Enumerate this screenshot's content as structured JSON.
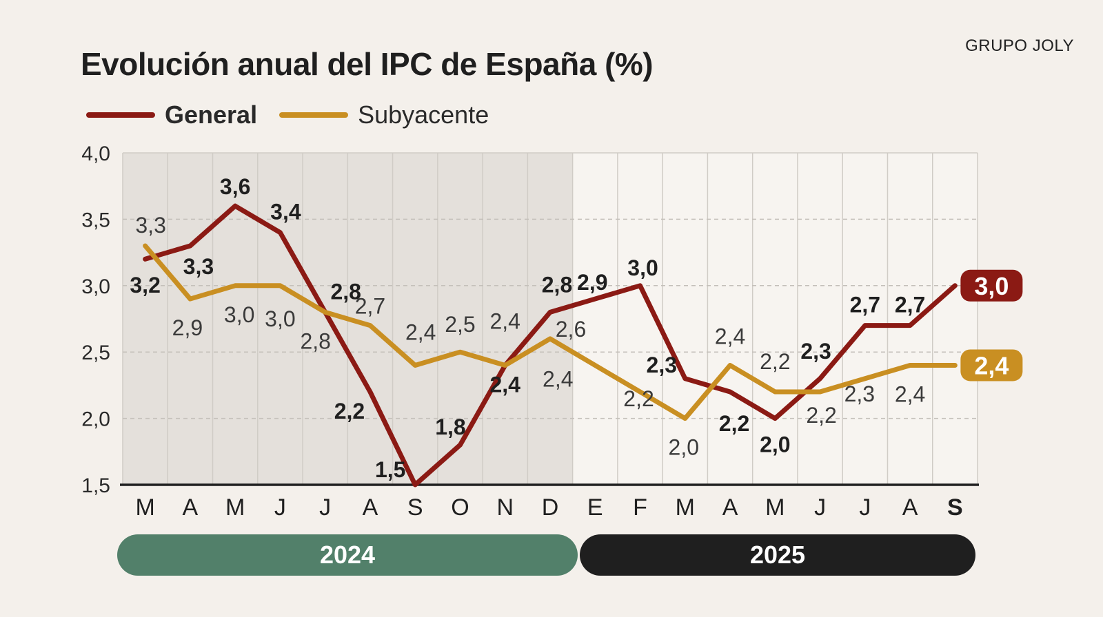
{
  "brand": "GRUPO JOLY",
  "title": "Evolución anual del IPC de España (%)",
  "legend": [
    {
      "name": "General",
      "color": "#8b1a14",
      "bold": true
    },
    {
      "name": "Subyacente",
      "color": "#c98f22",
      "bold": false
    }
  ],
  "years": [
    {
      "label": "2024",
      "color": "#52806a"
    },
    {
      "label": "2025",
      "color": "#1f1f1f"
    }
  ],
  "chart_data": {
    "type": "line",
    "title": "Evolución anual del IPC de España (%)",
    "categories": [
      "M",
      "A",
      "M",
      "J",
      "J",
      "A",
      "S",
      "O",
      "N",
      "D",
      "E",
      "F",
      "M",
      "A",
      "M",
      "J",
      "J",
      "A",
      "S"
    ],
    "ylim": [
      1.5,
      4.0
    ],
    "yticks": [
      "1,5",
      "2,0",
      "2,5",
      "3,0",
      "3,5",
      "4,0"
    ],
    "grid": true,
    "shaded_period": "2024",
    "series": [
      {
        "name": "General",
        "color": "#8b1a14",
        "values": [
          3.2,
          3.3,
          3.6,
          3.4,
          2.8,
          2.2,
          1.5,
          1.8,
          2.4,
          2.8,
          2.9,
          3.0,
          2.3,
          2.2,
          2.0,
          2.3,
          2.7,
          2.7,
          3.0
        ],
        "labels": [
          "3,2",
          "3,3",
          "3,6",
          "3,4",
          "2,8",
          "2,2",
          "1,5",
          "1,8",
          "2,4",
          "2,8",
          "2,9",
          "3,0",
          "2,3",
          "2,2",
          "2,0",
          "2,3",
          "2,7",
          "2,7",
          "3,0"
        ]
      },
      {
        "name": "Subyacente",
        "color": "#c98f22",
        "values": [
          3.3,
          2.9,
          3.0,
          3.0,
          2.8,
          2.7,
          2.4,
          2.5,
          2.4,
          2.6,
          2.4,
          2.2,
          2.0,
          2.4,
          2.2,
          2.2,
          2.3,
          2.4,
          2.4
        ],
        "labels": [
          "3,3",
          "2,9",
          "3,0",
          "3,0",
          "2,8",
          "2,7",
          "2,4",
          "2,5",
          "2,4",
          "2,6",
          "2,4",
          "2,2",
          "2,0",
          "2,4",
          "2,2",
          "2,2",
          "2,3",
          "2,4",
          "2,4"
        ]
      }
    ]
  }
}
